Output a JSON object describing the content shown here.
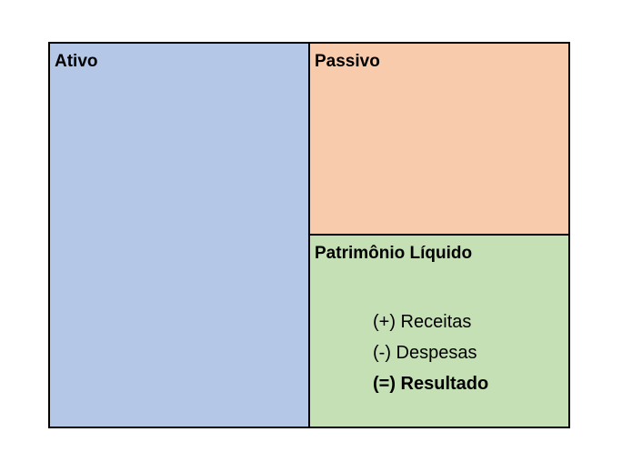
{
  "colors": {
    "ativo": "#B4C7E7",
    "passivo": "#F8CBAD",
    "patrimonio": "#C5E0B4",
    "border": "#000000"
  },
  "ativo": {
    "title": "Ativo"
  },
  "passivo": {
    "title": "Passivo"
  },
  "patrimonio_liquido": {
    "title": "Patrimônio Líquido",
    "items": [
      "(+) Receitas",
      "(-) Despesas",
      "(=) Resultado"
    ]
  }
}
